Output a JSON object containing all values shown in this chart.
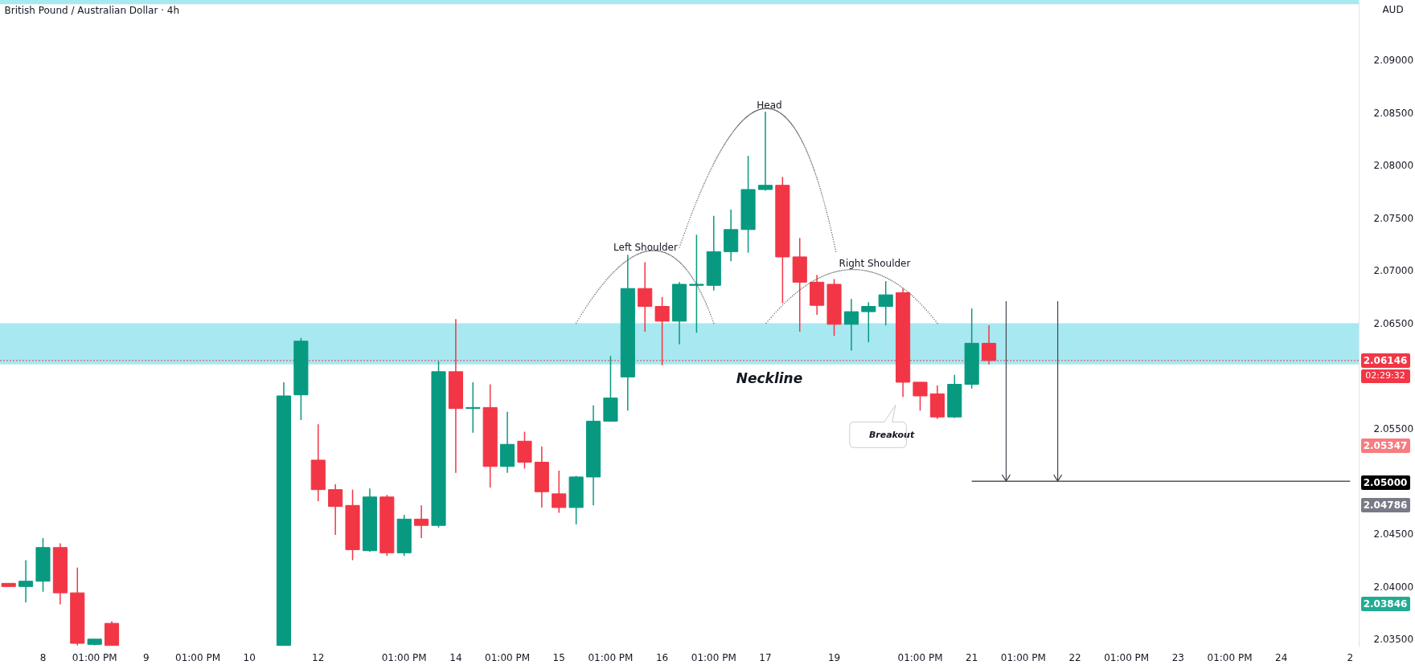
{
  "chart_data": {
    "type": "candlestick",
    "title": "British Pound / Australian Dollar · 4h",
    "ylabel": "AUD",
    "categories": [
      null,
      null,
      "8",
      null,
      null,
      "01:00 PM",
      null,
      null,
      "9",
      null,
      null,
      "01:00 PM",
      null,
      null,
      "10",
      null,
      null,
      null,
      "12",
      null,
      null,
      null,
      null,
      "01:00 PM",
      null,
      null,
      "14",
      null,
      null,
      "01:00 PM",
      null,
      null,
      "15",
      null,
      null,
      "01:00 PM",
      null,
      null,
      "16",
      null,
      null,
      "01:00 PM",
      null,
      null,
      "17",
      null,
      null,
      null,
      "19",
      null,
      null,
      null,
      null,
      "01:00 PM",
      null,
      null,
      "21",
      null,
      null,
      "01:00 PM",
      null,
      null,
      "22",
      null,
      null,
      "01:00 PM",
      null,
      null,
      "23",
      null,
      null,
      "01:00 PM",
      null,
      null,
      "24",
      null,
      null,
      null,
      "2"
    ],
    "ohlc": [
      [
        2.0403,
        2.0403,
        2.04,
        2.04
      ],
      [
        2.04,
        2.0425,
        2.0385,
        2.0405
      ],
      [
        2.0405,
        2.0446,
        2.0395,
        2.0437
      ],
      [
        2.0437,
        2.0441,
        2.0383,
        2.0394
      ],
      [
        2.0394,
        2.0418,
        2.0344,
        2.0346
      ],
      [
        2.0345,
        2.035,
        2.0344,
        2.035
      ],
      [
        2.0365,
        2.0367,
        2.0344,
        2.0344
      ],
      null,
      null,
      null,
      null,
      null,
      null,
      null,
      null,
      null,
      [
        2.0344,
        2.0594,
        2.0344,
        2.0581
      ],
      [
        2.0582,
        2.0636,
        2.0558,
        2.0633
      ],
      [
        2.052,
        2.0554,
        2.0481,
        2.0492
      ],
      [
        2.0492,
        2.0497,
        2.0449,
        2.0476
      ],
      [
        2.0477,
        2.0492,
        2.0425,
        2.0435
      ],
      [
        2.0434,
        2.0493,
        2.0433,
        2.0485
      ],
      [
        2.0485,
        2.0487,
        2.0429,
        2.0432
      ],
      [
        2.0432,
        2.0468,
        2.0429,
        2.0464
      ],
      [
        2.0464,
        2.0477,
        2.0446,
        2.0458
      ],
      [
        2.0458,
        2.0614,
        2.0456,
        2.0604
      ],
      [
        2.0604,
        2.0654,
        2.0508,
        2.0569
      ],
      [
        2.0569,
        2.0594,
        2.0546,
        2.057
      ],
      [
        2.057,
        2.0592,
        2.0494,
        2.0514
      ],
      [
        2.0514,
        2.0566,
        2.0508,
        2.0535
      ],
      [
        2.0538,
        2.0547,
        2.0512,
        2.0518
      ],
      [
        2.0518,
        2.0533,
        2.0475,
        2.049
      ],
      [
        2.0488,
        2.051,
        2.047,
        2.0475
      ],
      [
        2.0475,
        2.0505,
        2.0459,
        2.0504
      ],
      [
        2.0504,
        2.0572,
        2.0477,
        2.0557
      ],
      [
        2.0557,
        2.0619,
        2.0557,
        2.0579
      ],
      [
        2.0599,
        2.0715,
        2.0567,
        2.0683
      ],
      [
        2.0683,
        2.0708,
        2.0642,
        2.0666
      ],
      [
        2.0666,
        2.0675,
        2.061,
        2.0652
      ],
      [
        2.0652,
        2.0689,
        2.063,
        2.0687
      ],
      [
        2.0686,
        2.0734,
        2.0641,
        2.0687
      ],
      [
        2.0686,
        2.0752,
        2.0681,
        2.0718
      ],
      [
        2.0718,
        2.0758,
        2.0709,
        2.0739
      ],
      [
        2.0739,
        2.0809,
        2.0717,
        2.0777
      ],
      [
        2.0777,
        2.0851,
        2.0776,
        2.0781
      ],
      [
        2.0781,
        2.0789,
        2.0669,
        2.0713
      ],
      [
        2.0713,
        2.0731,
        2.0642,
        2.0689
      ],
      [
        2.0689,
        2.0696,
        2.0658,
        2.0667
      ],
      [
        2.0687,
        2.0692,
        2.0638,
        2.0649
      ],
      [
        2.0649,
        2.0673,
        2.0624,
        2.0661
      ],
      [
        2.0661,
        2.067,
        2.0632,
        2.0666
      ],
      [
        2.0666,
        2.069,
        2.0648,
        2.0677
      ],
      [
        2.0679,
        2.0683,
        2.058,
        2.0594
      ],
      [
        2.0594,
        2.0594,
        2.0567,
        2.0581
      ],
      [
        2.0583,
        2.0591,
        2.0559,
        2.0561
      ],
      [
        2.0561,
        2.0601,
        2.056,
        2.0592
      ],
      [
        2.0592,
        2.0664,
        2.0588,
        2.0631
      ],
      [
        2.0631,
        2.0648,
        2.0611,
        2.06146
      ],
      null,
      null,
      null,
      null,
      null,
      null,
      null,
      null,
      null,
      null,
      null,
      null,
      null,
      null,
      null,
      null,
      null,
      null,
      null,
      null,
      null
    ],
    "colors": [
      "#f23645",
      "#089981",
      "#089981",
      "#f23645",
      "#f23645",
      "#089981",
      "#f23645",
      null,
      null,
      null,
      null,
      null,
      null,
      null,
      null,
      null,
      "#089981",
      "#089981",
      "#f23645",
      "#f23645",
      "#f23645",
      "#089981",
      "#f23645",
      "#089981",
      "#f23645",
      "#089981",
      "#f23645",
      "#089981",
      "#f23645",
      "#089981",
      "#f23645",
      "#f23645",
      "#f23645",
      "#089981",
      "#089981",
      "#089981",
      "#089981",
      "#f23645",
      "#f23645",
      "#089981",
      "#089981",
      "#089981",
      "#089981",
      "#089981",
      "#089981",
      "#f23645",
      "#f23645",
      "#f23645",
      "#f23645",
      "#089981",
      "#089981",
      "#089981",
      "#f23645",
      "#f23645",
      "#f23645",
      "#089981",
      "#089981",
      "#f23645",
      null,
      null,
      null,
      null,
      null,
      null,
      null,
      null,
      null,
      null,
      null,
      null,
      null,
      null,
      null,
      null,
      null,
      null,
      null,
      null,
      null
    ],
    "ylim": [
      2.0343,
      2.0957
    ],
    "yticks": [
      {
        "value": 2.035,
        "label": "2.03500"
      },
      {
        "value": 2.04,
        "label": "2.04000"
      },
      {
        "value": 2.045,
        "label": "2.04500"
      },
      {
        "value": 2.055,
        "label": "2.05500"
      },
      {
        "value": 2.065,
        "label": "2.06500"
      },
      {
        "value": 2.07,
        "label": "2.07000"
      },
      {
        "value": 2.075,
        "label": "2.07500"
      },
      {
        "value": 2.08,
        "label": "2.08000"
      },
      {
        "value": 2.085,
        "label": "2.08500"
      },
      {
        "value": 2.09,
        "label": "2.09000"
      }
    ],
    "series": [
      {
        "type": "line",
        "x": [
          "21",
          "2"
        ],
        "values": [
          2.05,
          2.05
        ],
        "color": "#000000"
      }
    ],
    "ref_lines": [
      {
        "axis": "y",
        "value": 2.06146,
        "label": "2.06146",
        "color": "#f23645",
        "line_style": "dotted"
      }
    ],
    "bands": [
      {
        "axis": "y",
        "from": 2.0611,
        "to": 2.065,
        "color": "#a8e8f0"
      },
      {
        "axis": "y",
        "from": 2.0953,
        "to": 2.0957,
        "color": "#a8e8f0"
      }
    ],
    "annotations": [
      "Left Shoulder",
      "Head",
      "Right Shoulder",
      "Neckline",
      "Breakout",
      "02:29:32",
      "2.05347",
      "2.05000",
      "2.04786",
      "2.03846"
    ]
  }
}
